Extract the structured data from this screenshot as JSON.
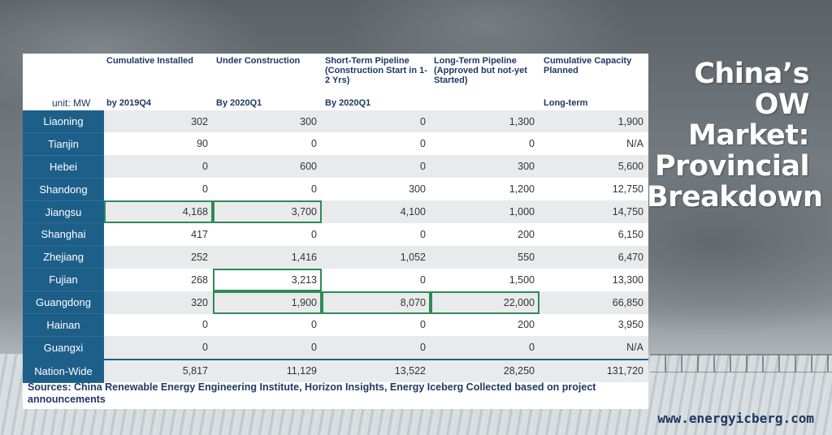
{
  "title_lines": [
    "China’s OW",
    "Market:",
    "Provincial",
    "Breakdown"
  ],
  "website": "www.energyicberg.com",
  "table": {
    "unit_label": "unit: MW",
    "columns": [
      {
        "header": "Cumulative Installed",
        "sub": "by 2019Q4"
      },
      {
        "header": "Under Construction",
        "sub": "By 2020Q1"
      },
      {
        "header": "Short-Term Pipeline (Construction Start in 1-2 Yrs)",
        "sub": "By 2020Q1"
      },
      {
        "header": "Long-Term Pipeline (Approved but not-yet Started)",
        "sub": ""
      },
      {
        "header": "Cumulative Capacity Planned",
        "sub": "Long-term"
      }
    ],
    "rows": [
      {
        "province": "Liaoning",
        "values": [
          "302",
          "300",
          "0",
          "1,300",
          "1,900"
        ]
      },
      {
        "province": "Tianjin",
        "values": [
          "90",
          "0",
          "0",
          "0",
          "N/A"
        ]
      },
      {
        "province": "Hebei",
        "values": [
          "0",
          "600",
          "0",
          "300",
          "5,600"
        ]
      },
      {
        "province": "Shandong",
        "values": [
          "0",
          "0",
          "300",
          "1,200",
          "12,750"
        ]
      },
      {
        "province": "Jiangsu",
        "values": [
          "4,168",
          "3,700",
          "4,100",
          "1,000",
          "14,750"
        ]
      },
      {
        "province": "Shanghai",
        "values": [
          "417",
          "0",
          "0",
          "200",
          "6,150"
        ]
      },
      {
        "province": "Zhejiang",
        "values": [
          "252",
          "1,416",
          "1,052",
          "550",
          "6,470"
        ]
      },
      {
        "province": "Fujian",
        "values": [
          "268",
          "3,213",
          "0",
          "1,500",
          "13,300"
        ]
      },
      {
        "province": "Guangdong",
        "values": [
          "320",
          "1,900",
          "8,070",
          "22,000",
          "66,850"
        ]
      },
      {
        "province": "Hainan",
        "values": [
          "0",
          "0",
          "0",
          "200",
          "3,950"
        ]
      },
      {
        "province": "Guangxi",
        "values": [
          "0",
          "0",
          "0",
          "0",
          "N/A"
        ]
      },
      {
        "province": "Nation-Wide",
        "values": [
          "5,817",
          "11,129",
          "13,522",
          "28,250",
          "131,720"
        ]
      }
    ],
    "sources": "Sources: China Renewable Energy Engineering Institute, Horizon Insights, Energy Iceberg Collected based on project announcements"
  },
  "colors": {
    "province_bg": "#1e5f8a",
    "highlight": "#2e8b57",
    "header_text": "#1f3864"
  }
}
